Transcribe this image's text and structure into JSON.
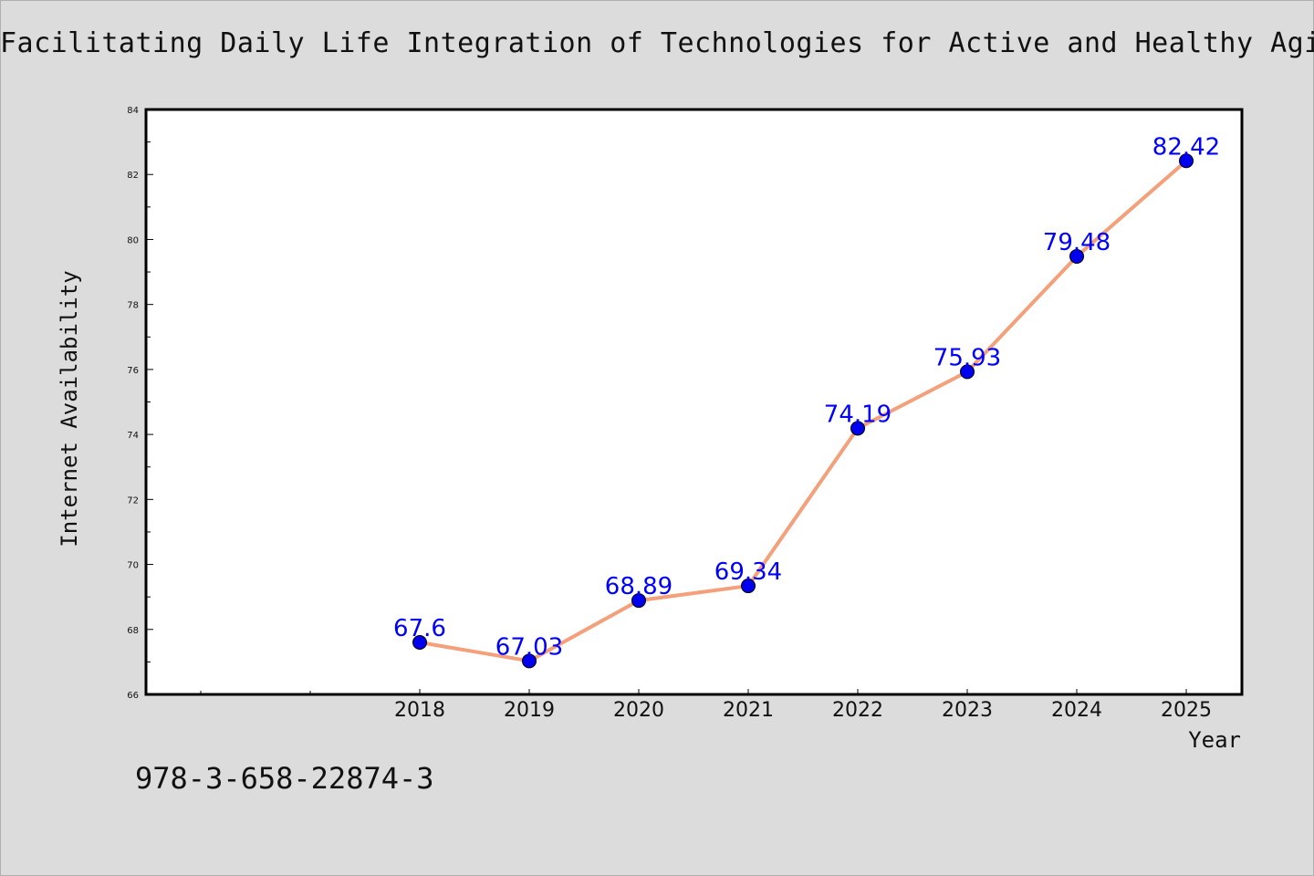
{
  "chart_data": {
    "type": "line",
    "title": "Facilitating Daily Life Integration of Technologies for Active and Healthy Aging",
    "xlabel": "Year",
    "ylabel": "Internet Availability",
    "ylim": [
      66,
      84
    ],
    "y_ticks": [
      "66",
      "68",
      "70",
      "72",
      "74",
      "76",
      "78",
      "80",
      "82",
      "84"
    ],
    "categories": [
      "2018",
      "2019",
      "2020",
      "2021",
      "2022",
      "2023",
      "2024",
      "2025"
    ],
    "series": [
      {
        "values": [
          67.6,
          67.03,
          68.89,
          69.34,
          74.19,
          75.93,
          79.48,
          82.42
        ],
        "labels": [
          "67.6",
          "67.03",
          "68.89",
          "69.34",
          "74.19",
          "75.93",
          "79.48",
          "82.42"
        ],
        "line_color": "#f4a07a",
        "marker_color": "#0000ee",
        "label_color": "#0000ff"
      }
    ],
    "grid": false,
    "legend": "none"
  },
  "footer": {
    "isbn": "978-3-658-22874-3"
  },
  "colors": {
    "background": "#dcdcdc",
    "plot_background": "#ffffff",
    "axis": "#000000"
  }
}
